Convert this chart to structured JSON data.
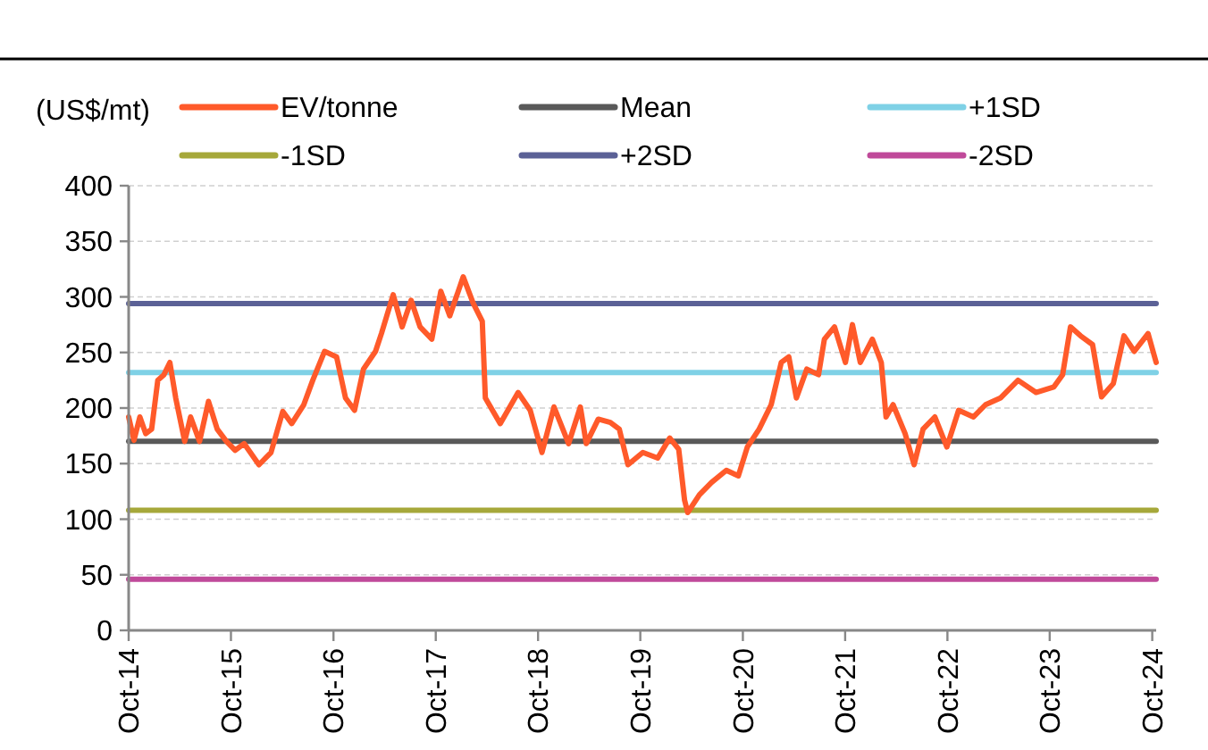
{
  "chart_data": {
    "type": "line",
    "ylabel": "(US$/mt)",
    "xlim": [
      "2014-10-01",
      "2024-10-15"
    ],
    "ylim": [
      0,
      400
    ],
    "yticks": [
      0,
      50,
      100,
      150,
      200,
      250,
      300,
      350,
      400
    ],
    "xticks": [
      {
        "value": "2014-10",
        "label": "Oct-14"
      },
      {
        "value": "2015-10",
        "label": "Oct-15"
      },
      {
        "value": "2016-10",
        "label": "Oct-16"
      },
      {
        "value": "2017-10",
        "label": "Oct-17"
      },
      {
        "value": "2018-10",
        "label": "Oct-18"
      },
      {
        "value": "2019-10",
        "label": "Oct-19"
      },
      {
        "value": "2020-10",
        "label": "Oct-20"
      },
      {
        "value": "2021-10",
        "label": "Oct-21"
      },
      {
        "value": "2022-10",
        "label": "Oct-22"
      },
      {
        "value": "2023-10",
        "label": "Oct-23"
      },
      {
        "value": "2024-10",
        "label": "Oct-24"
      }
    ],
    "grid": "y",
    "legend": "top",
    "marker": "none",
    "line_style": "solid",
    "series": [
      {
        "name": "EV/tonne",
        "color": "#ff5a2a",
        "x": [
          "2014-10-01",
          "2014-10-20",
          "2014-11-10",
          "2014-12-01",
          "2014-12-22",
          "2015-01-13",
          "2015-02-04",
          "2015-02-25",
          "2015-03-18",
          "2015-04-19",
          "2015-05-10",
          "2015-06-11",
          "2015-07-13",
          "2015-08-13",
          "2015-09-15",
          "2015-10-16",
          "2015-11-17",
          "2016-01-09",
          "2016-02-21",
          "2016-04-03",
          "2016-05-05",
          "2016-06-17",
          "2016-07-19",
          "2016-08-30",
          "2016-10-12",
          "2016-11-13",
          "2016-12-15",
          "2017-01-16",
          "2017-02-28",
          "2017-03-21",
          "2017-05-02",
          "2017-06-03",
          "2017-07-05",
          "2017-08-06",
          "2017-09-17",
          "2017-10-19",
          "2017-11-20",
          "2018-01-07",
          "2018-02-12",
          "2018-03-16",
          "2018-03-27",
          "2018-05-19",
          "2018-07-22",
          "2018-09-03",
          "2018-10-15",
          "2018-11-27",
          "2019-01-18",
          "2019-03-01",
          "2019-03-22",
          "2019-05-04",
          "2019-06-16",
          "2019-07-18",
          "2019-08-18",
          "2019-10-10",
          "2019-12-02",
          "2020-01-14",
          "2020-02-15",
          "2020-03-07",
          "2020-03-18",
          "2020-04-29",
          "2020-06-11",
          "2020-08-03",
          "2020-09-15",
          "2020-10-17",
          "2020-11-28",
          "2021-01-10",
          "2021-02-15",
          "2021-03-14",
          "2021-04-10",
          "2021-05-17",
          "2021-06-28",
          "2021-07-19",
          "2021-08-24",
          "2021-10-02",
          "2021-10-27",
          "2021-11-24",
          "2022-01-06",
          "2022-02-07",
          "2022-02-24",
          "2022-03-21",
          "2022-05-03",
          "2022-06-04",
          "2022-07-06",
          "2022-08-17",
          "2022-09-29",
          "2022-11-10",
          "2023-01-02",
          "2023-02-14",
          "2023-04-08",
          "2023-06-10",
          "2023-08-13",
          "2023-10-16",
          "2023-11-16",
          "2023-12-14",
          "2024-01-19",
          "2024-03-02",
          "2024-04-03",
          "2024-05-15",
          "2024-06-22",
          "2024-07-29",
          "2024-09-16",
          "2024-10-15"
        ],
        "values": [
          192,
          171,
          192,
          177,
          181,
          225,
          230,
          241,
          209,
          170,
          192,
          170,
          206,
          181,
          170,
          162,
          168,
          149,
          160,
          197,
          186,
          203,
          225,
          251,
          246,
          209,
          198,
          235,
          251,
          267,
          302,
          273,
          297,
          273,
          262,
          305,
          283,
          318,
          294,
          278,
          209,
          186,
          214,
          198,
          160,
          201,
          168,
          201,
          168,
          190,
          187,
          181,
          149,
          160,
          155,
          173,
          163,
          117,
          106,
          122,
          133,
          144,
          139,
          165,
          181,
          203,
          241,
          246,
          209,
          235,
          230,
          262,
          273,
          241,
          275,
          241,
          262,
          241,
          192,
          203,
          177,
          149,
          181,
          192,
          165,
          198,
          192,
          203,
          209,
          225,
          214,
          219,
          230,
          273,
          265,
          257,
          210,
          222,
          265,
          251,
          267,
          241
        ]
      },
      {
        "name": "Mean",
        "color": "#595959",
        "x": [
          "2014-10-01",
          "2024-10-15"
        ],
        "values": [
          170,
          170
        ]
      },
      {
        "name": "+1SD",
        "color": "#7fd1e6",
        "x": [
          "2014-10-01",
          "2024-10-15"
        ],
        "values": [
          232,
          232
        ]
      },
      {
        "name": "-1SD",
        "color": "#a6a83a",
        "x": [
          "2014-10-01",
          "2024-10-15"
        ],
        "values": [
          108,
          108
        ]
      },
      {
        "name": "+2SD",
        "color": "#5b6196",
        "x": [
          "2014-10-01",
          "2024-10-15"
        ],
        "values": [
          294,
          294
        ]
      },
      {
        "name": "-2SD",
        "color": "#c04a9a",
        "x": [
          "2014-10-01",
          "2024-10-15"
        ],
        "values": [
          46,
          46
        ]
      }
    ]
  }
}
